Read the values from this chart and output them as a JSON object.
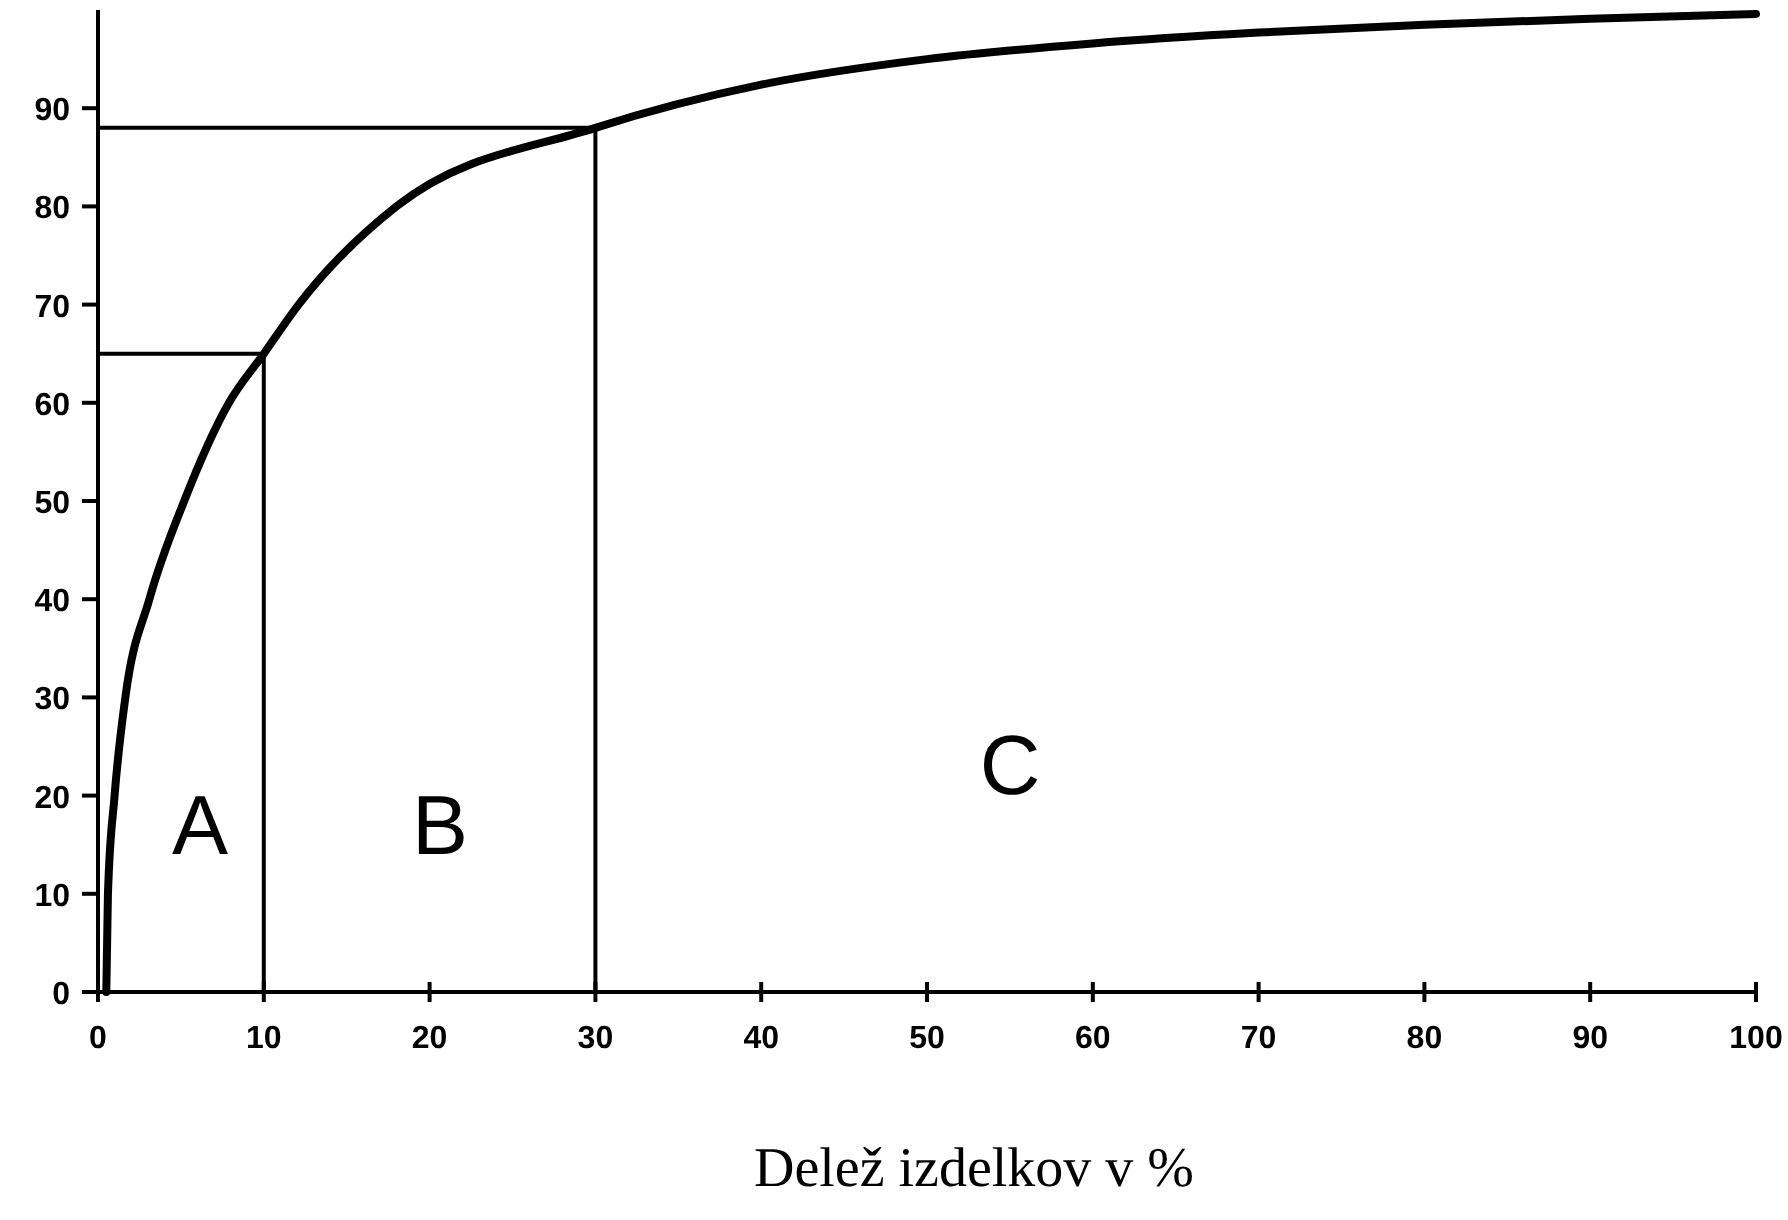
{
  "chart_data": {
    "type": "line",
    "xlabel": "Delež izdelkov v %",
    "xlim": [
      0,
      100
    ],
    "xticks": [
      0,
      10,
      20,
      30,
      40,
      50,
      60,
      70,
      80,
      90,
      100
    ],
    "ylim": [
      0,
      100
    ],
    "yticks": [
      0,
      10,
      20,
      30,
      40,
      50,
      60,
      70,
      80,
      90
    ],
    "grid": false,
    "marker": "none",
    "line_style": "solid",
    "series": [
      {
        "color": "#000000",
        "x": [
          0.5,
          0.6,
          1,
          1.65,
          3.1,
          5.2,
          7.9,
          10,
          12.1,
          18,
          30,
          40,
          50,
          60,
          70,
          80,
          90,
          100
        ],
        "values": [
          0,
          10,
          20,
          30,
          40,
          50,
          60,
          65,
          70,
          80,
          88,
          92.4,
          95,
          96.6,
          97.7,
          98.5,
          99.1,
          99.6
        ]
      },
      {
        "color": "#000000",
        "x": [
          0,
          10,
          10
        ],
        "values": [
          65,
          65,
          0
        ]
      },
      {
        "color": "#000000",
        "x": [
          0,
          30,
          30
        ],
        "values": [
          88,
          88,
          0
        ]
      }
    ],
    "annotations": [
      "A",
      "B",
      "C"
    ]
  }
}
